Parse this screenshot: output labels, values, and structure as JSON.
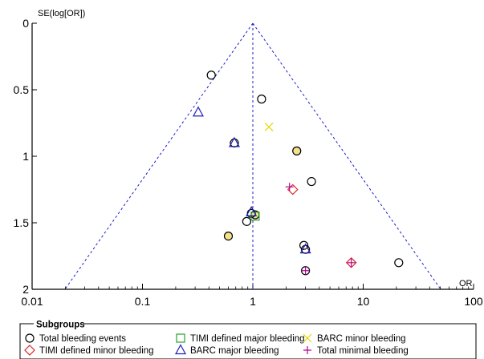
{
  "chart_data": {
    "type": "scatter",
    "subtype": "funnel-plot",
    "xlabel": "OR",
    "ylabel": "SE(log[OR])",
    "x_scale": "log",
    "xlim": [
      0.01,
      100
    ],
    "ylim": [
      0,
      2
    ],
    "y_inverted": true,
    "x_ticks": [
      "0.01",
      "0.1",
      "1",
      "10",
      "100"
    ],
    "y_ticks": [
      "0",
      "0.5",
      "1",
      "1.5",
      "2"
    ],
    "pooled_or": 1.0,
    "funnel_apex_se": 0,
    "grid": false,
    "legend_title": "Subgroups",
    "legend_position": "bottom",
    "series": [
      {
        "name": "Total bleeding events",
        "marker": "circle",
        "color": "#000000",
        "points": [
          [
            0.42,
            0.39
          ],
          [
            1.2,
            0.57
          ],
          [
            0.68,
            0.9
          ],
          [
            3.4,
            1.19
          ],
          [
            0.88,
            1.49
          ],
          [
            2.9,
            1.67
          ],
          [
            21,
            1.8
          ],
          [
            3.0,
            1.86
          ],
          [
            2.5,
            0.96
          ],
          [
            0.6,
            1.6
          ],
          [
            1.05,
            1.44
          ],
          [
            0.97,
            1.43
          ],
          [
            3.0,
            1.7
          ]
        ]
      },
      {
        "name": "TIMI defined minor bleeding",
        "marker": "diamond",
        "color": "#d62728",
        "points": [
          [
            2.3,
            1.25
          ],
          [
            7.8,
            1.8
          ]
        ]
      },
      {
        "name": "TIMI defined major bleeding",
        "marker": "square",
        "color": "#2ca02c",
        "points": [
          [
            1.05,
            1.45
          ]
        ]
      },
      {
        "name": "BARC major bleeding",
        "marker": "triangle",
        "color": "#1f1fb4",
        "points": [
          [
            0.32,
            0.67
          ],
          [
            0.68,
            0.9
          ],
          [
            0.97,
            1.42
          ],
          [
            3.0,
            1.7
          ]
        ]
      },
      {
        "name": "BARC minor bleeding",
        "marker": "x",
        "color": "#e6d800",
        "points": [
          [
            1.4,
            0.78
          ]
        ]
      },
      {
        "name": "Total minimal bleeding",
        "marker": "plus",
        "color": "#b40090",
        "points": [
          [
            2.15,
            1.23
          ],
          [
            7.8,
            1.8
          ],
          [
            3.0,
            1.86
          ]
        ]
      }
    ],
    "fill_marks": [
      {
        "series": "Total bleeding events",
        "x": 2.5,
        "se": 0.96,
        "fill": "#f2e28a"
      },
      {
        "series": "Total bleeding events",
        "x": 0.6,
        "se": 1.6,
        "fill": "#f2e28a"
      },
      {
        "series": "Total bleeding events",
        "x": 1.05,
        "se": 1.44,
        "fill": "#f2e28a"
      }
    ]
  }
}
